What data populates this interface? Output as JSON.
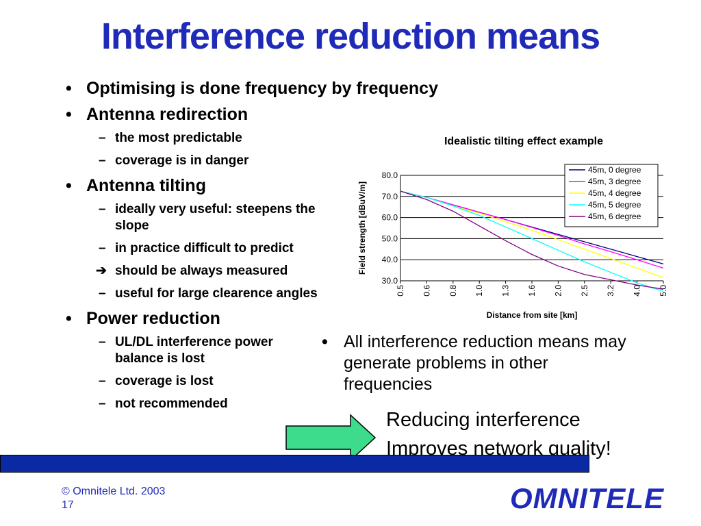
{
  "title": "Interference reduction means",
  "bullets": {
    "optimising": "Optimising is done frequency by frequency",
    "redirection": {
      "label": "Antenna redirection",
      "sub": [
        "the most predictable",
        "coverage is in danger"
      ]
    },
    "tilting": {
      "label": "Antenna tilting",
      "sub1": "ideally very useful: steepens the slope",
      "sub2": "in practice difficult to predict",
      "arrow_sub": "should be always measured",
      "sub3": "useful for large clearence angles"
    },
    "power": {
      "label": "Power reduction",
      "sub": [
        "UL/DL interference power balance is lost",
        "coverage is lost",
        "not recommended"
      ]
    }
  },
  "glyphs": {
    "bullet": "•",
    "dash": "–",
    "arrow": "➔"
  },
  "note": "All interference reduction means may generate problems in other frequencies",
  "callout": {
    "line1": "Reducing interference",
    "line2": "Improves network quality!"
  },
  "footer": {
    "copyright": "© Omnitele Ltd. 2003",
    "page": "17"
  },
  "logo": "OMNITELE",
  "colors": {
    "title": "#1f2bb8",
    "bar": "#0a2aa3",
    "arrow_fill": "#3ddc8c"
  },
  "chart_data": {
    "type": "line",
    "title": "Idealistic tilting effect example",
    "xlabel": "Distance from site [km]",
    "ylabel": "Field strength [dBuV/m]",
    "categories": [
      "0.5",
      "0.6",
      "0.8",
      "1.0",
      "1.3",
      "1.6",
      "2.0",
      "2.5",
      "3.2",
      "4.0",
      "5.0"
    ],
    "ylim": [
      30,
      80
    ],
    "ytick_labels": [
      "80.0",
      "70.0",
      "60.0",
      "50.0",
      "40.0",
      "30.0"
    ],
    "grid": true,
    "legend_position": "top-right",
    "series": [
      {
        "name": "45m, 0 degree",
        "color": "#000080",
        "values": [
          72.5,
          69.5,
          66,
          62.5,
          59,
          55.5,
          52,
          48.5,
          45,
          41.5,
          38
        ]
      },
      {
        "name": "45m, 3 degree",
        "color": "#ff00ff",
        "values": [
          72.5,
          69.5,
          66,
          62.5,
          59,
          55.3,
          51.5,
          47.5,
          43.8,
          40,
          36
        ]
      },
      {
        "name": "45m, 4 degree",
        "color": "#ffff00",
        "values": [
          72.5,
          69.5,
          65.5,
          62,
          58,
          54,
          49.5,
          45,
          40.5,
          36,
          31.5
        ]
      },
      {
        "name": "45m, 5 degree",
        "color": "#00ffff",
        "values": [
          72.5,
          69.5,
          65.5,
          61,
          55.5,
          50,
          44.5,
          39,
          34,
          29,
          25
        ]
      },
      {
        "name": "45m, 6 degree",
        "color": "#800080",
        "values": [
          72.5,
          68.5,
          63,
          56,
          49,
          42.5,
          37,
          33,
          30.5,
          28,
          26
        ]
      }
    ]
  }
}
